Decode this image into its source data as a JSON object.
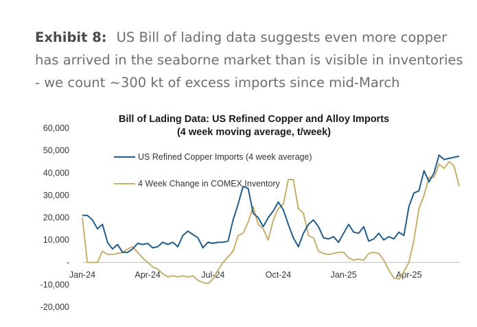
{
  "exhibit": {
    "label": "Exhibit 8:",
    "text": "US Bill of lading data suggests even more copper has arrived in the seaborne market than is visible in inventories - we count ~300 kt of excess imports since mid-March"
  },
  "colors": {
    "imports": "#1f5c8c",
    "comex": "#c9ad6b",
    "axis": "#bdbdbd"
  },
  "chart_data": {
    "type": "line",
    "title": "Bill of Lading Data: US Refined Copper and Alloy Imports",
    "subtitle": "(4 week moving average, t/week)",
    "xlabel": "",
    "ylabel": "",
    "ylim": [
      -20000,
      60000
    ],
    "yticks": [
      "60,000",
      "50,000",
      "40,000",
      "30,000",
      "20,000",
      "10,000",
      "-",
      "-10,000",
      "-20,000"
    ],
    "ytick_values": [
      60000,
      50000,
      40000,
      30000,
      20000,
      10000,
      0,
      -10000,
      -20000
    ],
    "xticks": [
      "Jan-24",
      "Apr-24",
      "Jul-24",
      "Oct-24",
      "Jan-25",
      "Apr-25"
    ],
    "xtick_weeks": [
      0,
      13,
      26,
      39,
      52,
      65
    ],
    "legend": [
      "US Refined Copper Imports (4 week average)",
      "4 Week Change in COMEX Inventory"
    ],
    "series": [
      {
        "name": "US Refined Copper Imports (4 week average)",
        "values": [
          21000,
          21000,
          19000,
          15000,
          17000,
          9000,
          6000,
          8000,
          4500,
          4500,
          6000,
          8500,
          8000,
          8500,
          6500,
          7000,
          9000,
          8000,
          9000,
          7000,
          12000,
          14000,
          12500,
          11000,
          6500,
          9000,
          8500,
          9000,
          9000,
          9500,
          19000,
          26000,
          34000,
          33000,
          22000,
          20000,
          16000,
          20000,
          23000,
          27000,
          23500,
          17000,
          11000,
          7000,
          13000,
          17000,
          19000,
          16000,
          11000,
          10500,
          11500,
          9000,
          13000,
          17000,
          13500,
          13000,
          16000,
          9500,
          10500,
          13000,
          10000,
          11500,
          10500,
          13500,
          12000,
          25000,
          31000,
          32000,
          41000,
          36000,
          40000,
          48000,
          46000,
          46500,
          47000,
          47500
        ]
      },
      {
        "name": "4 Week Change in COMEX Inventory",
        "values": [
          20000,
          0,
          0,
          0,
          5000,
          3500,
          3500,
          4000,
          4500,
          6000,
          7000,
          4500,
          2000,
          0,
          -2000,
          -3000,
          -5000,
          -6500,
          -6000,
          -6500,
          -6000,
          -6500,
          -6000,
          -8000,
          -9000,
          -9500,
          -7500,
          -3500,
          0,
          2500,
          5000,
          12000,
          13000,
          18000,
          25000,
          17000,
          15000,
          10000,
          19000,
          24000,
          26000,
          37000,
          37000,
          24000,
          22000,
          12000,
          11000,
          5000,
          4000,
          3500,
          4000,
          4500,
          4500,
          2000,
          1000,
          1500,
          1000,
          4000,
          4500,
          4000,
          1000,
          -3500,
          -7000,
          -7500,
          -4000,
          0,
          10000,
          24000,
          30000,
          38000,
          38000,
          44000,
          42000,
          45000,
          43000,
          34000
        ]
      }
    ]
  }
}
